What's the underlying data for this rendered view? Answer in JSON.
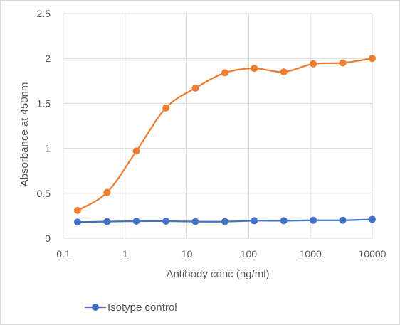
{
  "chart_data": {
    "type": "line",
    "title": "",
    "xlabel": "Antibody conc (ng/ml)",
    "ylabel": "Absorbance at 450nm",
    "x_scale": "log",
    "xlim": [
      0.1,
      10000
    ],
    "ylim": [
      0,
      2.5
    ],
    "grid": true,
    "legend_position": "bottom-left",
    "x_tick_labels": [
      "0.1",
      "1",
      "10",
      "100",
      "1000",
      "10000"
    ],
    "y_tick_labels": [
      "0",
      "0.5",
      "1",
      "1.5",
      "2",
      "2.5"
    ],
    "series": [
      {
        "name": "",
        "color": "#ED7D31",
        "x": [
          0.17,
          0.51,
          1.52,
          4.57,
          13.7,
          41.2,
          123,
          370,
          1111,
          3333,
          10000
        ],
        "y": [
          0.31,
          0.51,
          0.97,
          1.45,
          1.67,
          1.84,
          1.89,
          1.85,
          1.94,
          1.95,
          2.0
        ]
      },
      {
        "name": "Isotype control",
        "color": "#4472C4",
        "x": [
          0.17,
          0.51,
          1.52,
          4.57,
          13.7,
          41.2,
          123,
          370,
          1111,
          3333,
          10000
        ],
        "y": [
          0.18,
          0.185,
          0.19,
          0.19,
          0.185,
          0.185,
          0.195,
          0.195,
          0.2,
          0.2,
          0.21
        ]
      }
    ]
  }
}
